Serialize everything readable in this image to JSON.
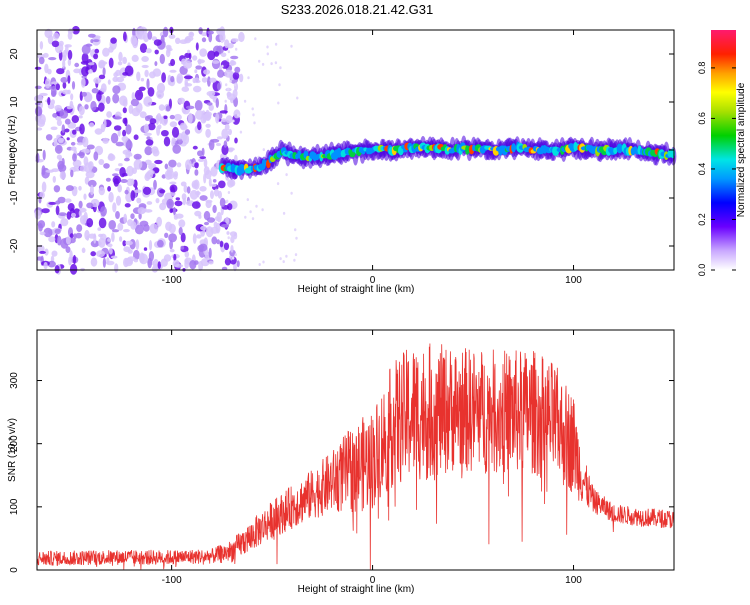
{
  "title": "S233.2026.018.21.42.G31",
  "chart_data": [
    {
      "type": "heatmap",
      "title": "S233.2026.018.21.42.G31",
      "xlabel": "Height of straight line (km)",
      "ylabel": "Frequency (Hz)",
      "xlim": [
        -167,
        150
      ],
      "ylim": [
        -25,
        25
      ],
      "x_ticks": [
        -100,
        0,
        100
      ],
      "y_ticks": [
        -20,
        -10,
        0,
        10,
        20
      ],
      "colorbar": {
        "label": "Normalized spectral amplitude",
        "range": [
          0,
          0.95
        ],
        "ticks": [
          0.0,
          0.2,
          0.4,
          0.6,
          0.8
        ],
        "tick_labels": [
          "0.0",
          "0.2",
          "0.4",
          "0.6",
          "0.8"
        ]
      },
      "noise_region_x": [
        -167,
        -75
      ],
      "ridge": {
        "x": [
          -75,
          -70,
          -60,
          -55,
          -50,
          -45,
          -40,
          -30,
          -20,
          -10,
          0,
          10,
          20,
          30,
          40,
          50,
          60,
          70,
          80,
          90,
          100,
          110,
          120,
          130,
          140,
          150
        ],
        "freq": [
          -3.5,
          -4,
          -4,
          -3.5,
          -2,
          0,
          -1,
          -1.5,
          -1,
          -0.5,
          0,
          0,
          0.5,
          0.5,
          0,
          0.5,
          0,
          0.5,
          0,
          0,
          0.5,
          0,
          0,
          0,
          -0.5,
          -1
        ]
      }
    },
    {
      "type": "line",
      "series": [
        {
          "name": "SNR",
          "color": "#e8322e"
        }
      ],
      "xlabel": "Height of straight line (km)",
      "ylabel": "SNR (10 * v/v)",
      "xlim": [
        -167,
        150
      ],
      "ylim": [
        0,
        380
      ],
      "x_ticks": [
        -100,
        0,
        100
      ],
      "y_ticks": [
        0,
        100,
        200,
        300
      ],
      "envelope": {
        "x": [
          -167,
          -130,
          -100,
          -80,
          -70,
          -60,
          -50,
          -40,
          -30,
          -20,
          -10,
          0,
          10,
          20,
          30,
          40,
          60,
          80,
          90,
          100,
          105,
          110,
          120,
          130,
          150
        ],
        "base": [
          18,
          20,
          20,
          22,
          30,
          55,
          80,
          100,
          120,
          140,
          160,
          175,
          230,
          250,
          250,
          255,
          250,
          250,
          235,
          200,
          140,
          110,
          90,
          85,
          80
        ],
        "spread": [
          12,
          12,
          12,
          12,
          18,
          25,
          30,
          35,
          40,
          50,
          70,
          80,
          100,
          110,
          110,
          100,
          100,
          100,
          95,
          80,
          40,
          20,
          15,
          15,
          15
        ]
      }
    }
  ]
}
